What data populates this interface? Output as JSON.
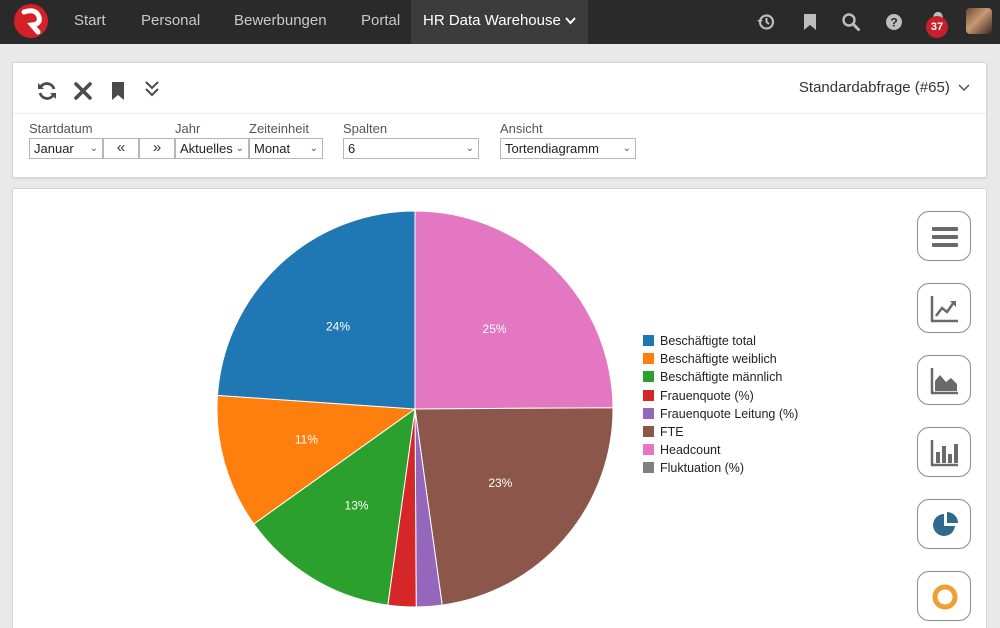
{
  "nav": {
    "items": [
      "Start",
      "Personal",
      "Bewerbungen",
      "Portal"
    ],
    "active": "HR Data Warehouse",
    "notification_count": "37",
    "icons": [
      "history-icon",
      "bookmark-icon",
      "search-icon",
      "help-icon",
      "bell-icon"
    ]
  },
  "toolbar": {
    "icons": [
      "refresh-icon",
      "close-icon",
      "bookmark-icon",
      "expand-icon"
    ],
    "query_title": "Standardabfrage (#65)"
  },
  "filters": {
    "startdatum_label": "Startdatum",
    "startdatum_value": "Januar",
    "jahr_label": "Jahr",
    "jahr_value": "Aktuelles",
    "zeiteinheit_label": "Zeiteinheit",
    "zeiteinheit_value": "Monat",
    "spalten_label": "Spalten",
    "spalten_value": "6",
    "ansicht_label": "Ansicht",
    "ansicht_value": "Tortendiagramm"
  },
  "chart_data": {
    "type": "pie",
    "series": [
      {
        "name": "Beschäftigte total",
        "value": 24,
        "label": "24%",
        "color": "#1f77b4"
      },
      {
        "name": "Beschäftigte weiblich",
        "value": 11,
        "label": "11%",
        "color": "#ff7f0e"
      },
      {
        "name": "Beschäftigte männlich",
        "value": 13,
        "label": "13%",
        "color": "#2ca02c"
      },
      {
        "name": "Frauenquote (%)",
        "value": 2.3,
        "label": "",
        "color": "#d62728"
      },
      {
        "name": "Frauenquote Leitung (%)",
        "value": 2.1,
        "label": "",
        "color": "#9467bd"
      },
      {
        "name": "FTE",
        "value": 23,
        "label": "23%",
        "color": "#8c564b"
      },
      {
        "name": "Headcount",
        "value": 25,
        "label": "25%",
        "color": "#e377c2"
      },
      {
        "name": "Fluktuation (%)",
        "value": 0,
        "label": "",
        "color": "#7f7f7f"
      }
    ],
    "legend": "right"
  },
  "view_buttons": [
    "table-view-icon",
    "line-chart-icon",
    "area-chart-icon",
    "bar-chart-icon",
    "pie-chart-icon",
    "donut-chart-icon"
  ]
}
